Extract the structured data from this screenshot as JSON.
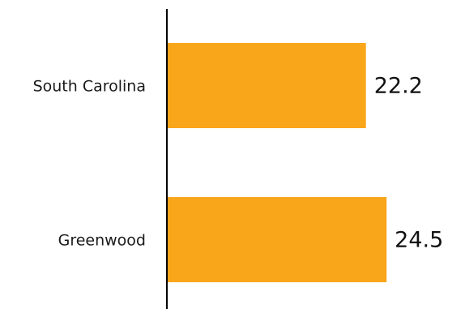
{
  "chart_data": {
    "type": "bar",
    "orientation": "horizontal",
    "categories": [
      "South Carolina",
      "Greenwood"
    ],
    "values": [
      22.2,
      24.5
    ],
    "title": "",
    "xlabel": "",
    "ylabel": "",
    "xlim": [
      0,
      26.2
    ],
    "grid": false,
    "legend": "none",
    "bar_color": "#FAA61A",
    "axis_color": "#000000"
  }
}
